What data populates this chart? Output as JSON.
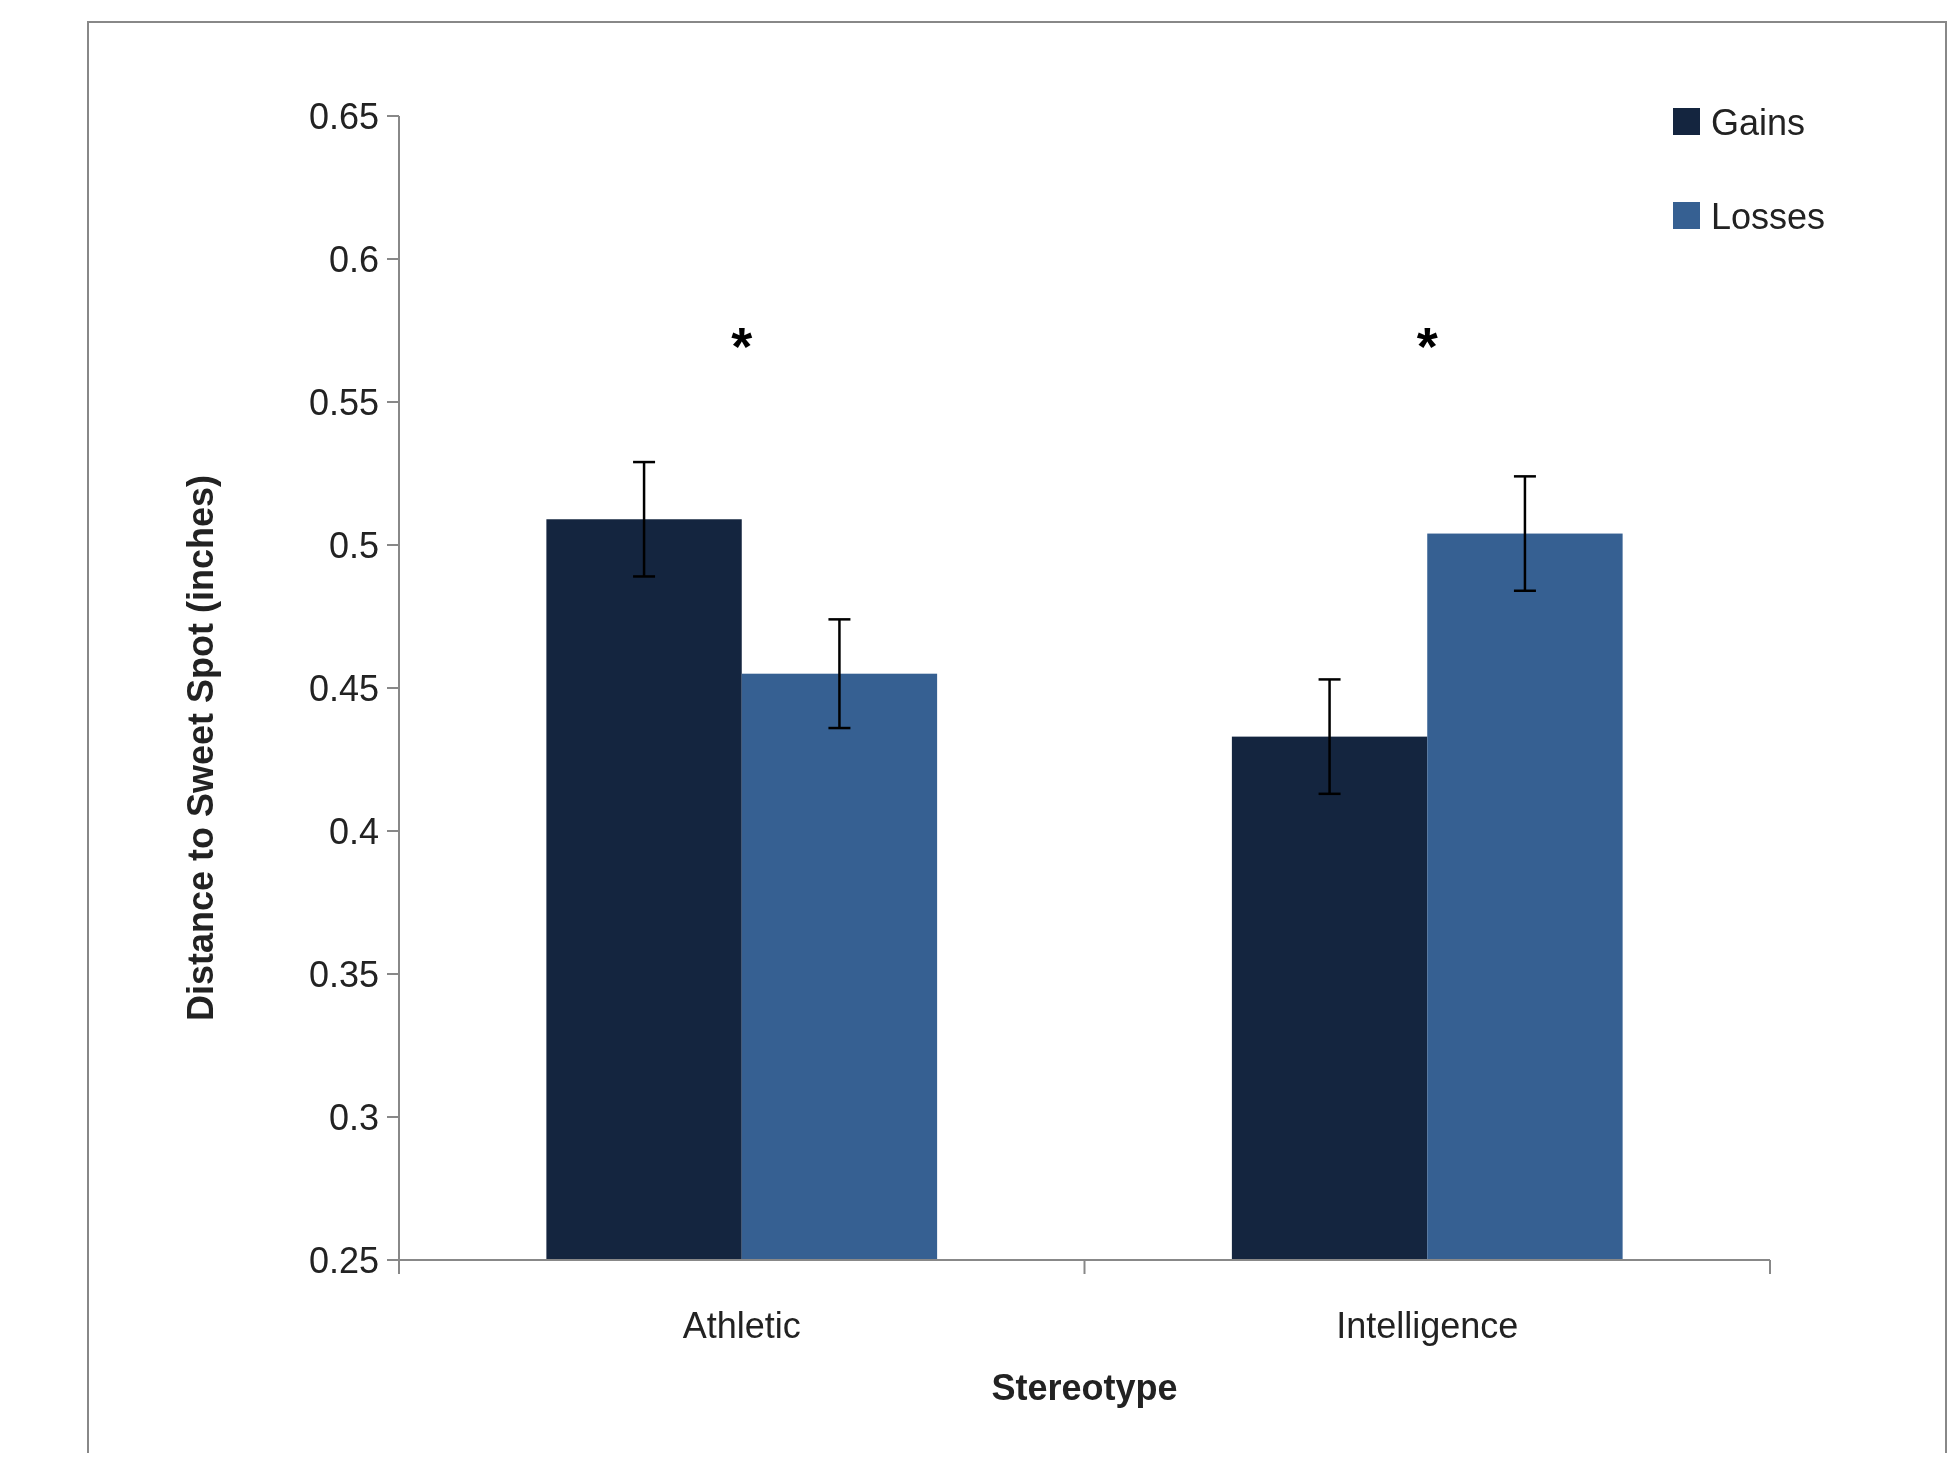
{
  "chart_data": {
    "type": "bar",
    "xlabel": "Stereotype",
    "ylabel": "Distance to Sweet Spot (inches)",
    "categories": [
      "Athletic",
      "Intelligence"
    ],
    "series": [
      {
        "name": "Gains",
        "color": "#14253f",
        "values": [
          0.509,
          0.433
        ],
        "errors": [
          0.02,
          0.02
        ]
      },
      {
        "name": "Losses",
        "color": "#366092",
        "values": [
          0.455,
          0.504
        ],
        "errors": [
          0.019,
          0.02
        ]
      }
    ],
    "ylim": [
      0.25,
      0.65
    ],
    "yticks": [
      0.25,
      0.3,
      0.35,
      0.4,
      0.45,
      0.5,
      0.55,
      0.6,
      0.65
    ],
    "grid": false,
    "legend": "top right",
    "annotations": [
      "*",
      "*"
    ]
  }
}
